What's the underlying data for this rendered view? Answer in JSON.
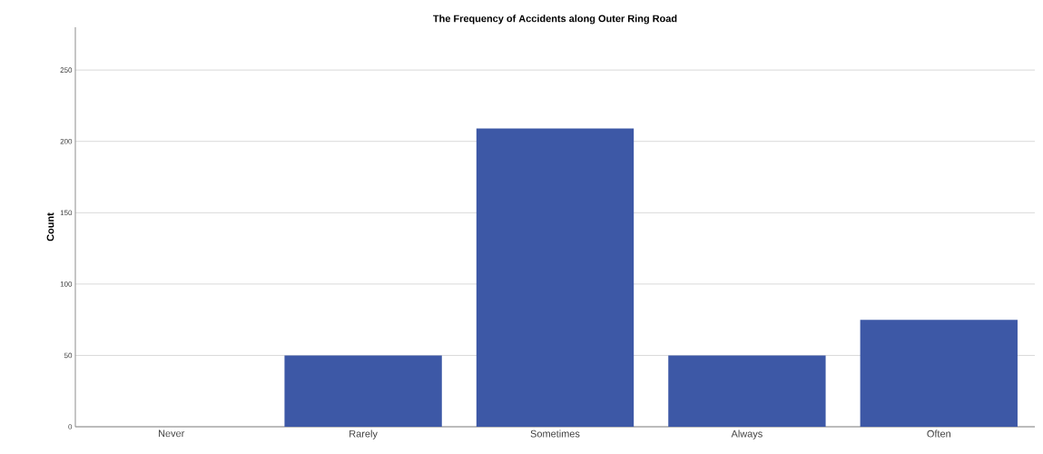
{
  "chart_data": {
    "type": "bar",
    "title": "The Frequency of Accidents along Outer Ring Road",
    "ylabel": "Count",
    "categories": [
      "Never",
      "Rarely",
      "Sometimes",
      "Always",
      "Often"
    ],
    "values": [
      0,
      50,
      209,
      50,
      75
    ],
    "color": "#3d58a6",
    "ylim": [
      0,
      280
    ],
    "yticks": [
      0,
      50,
      100,
      150,
      200,
      250
    ],
    "grid": "y"
  }
}
